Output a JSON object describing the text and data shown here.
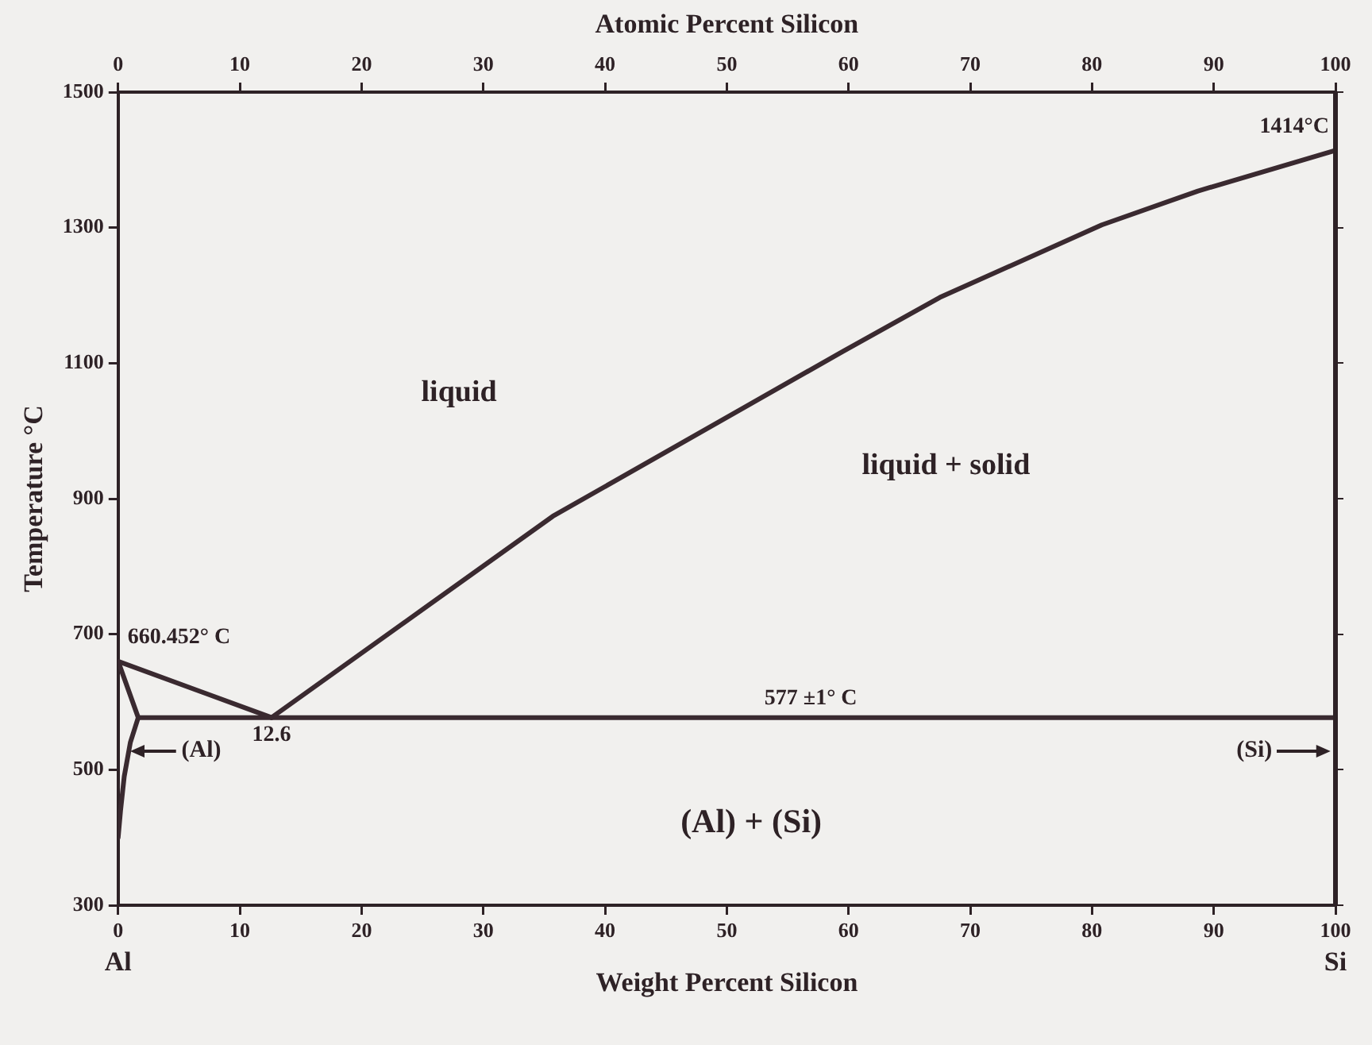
{
  "chart_data": {
    "type": "line",
    "xlabel": "Weight Percent Silicon",
    "x2label": "Atomic Percent Silicon",
    "ylabel": "Temperature °C",
    "xlim": [
      0,
      100
    ],
    "xticks": [
      0,
      10,
      20,
      30,
      40,
      50,
      60,
      70,
      80,
      90,
      100
    ],
    "x2lim": [
      0,
      100
    ],
    "x2ticks": [
      0,
      10,
      20,
      30,
      40,
      50,
      60,
      70,
      80,
      90,
      100
    ],
    "ylim": [
      300,
      1500
    ],
    "yticks": [
      300,
      500,
      700,
      900,
      1100,
      1300,
      1500
    ],
    "ref_lines": [
      {
        "axis": "x",
        "value": 100
      }
    ],
    "grid": false,
    "legend": false,
    "marker": "none",
    "line_style": "solid",
    "series": [
      {
        "color": "#3a2a30",
        "x": [
          0,
          12.6
        ],
        "values": [
          660,
          577
        ]
      },
      {
        "color": "#3a2a30",
        "x": [
          12.6,
          35.7,
          59.5,
          67.5,
          80.8,
          88.7,
          100
        ],
        "values": [
          577,
          874,
          1117,
          1197,
          1304,
          1354,
          1414
        ]
      },
      {
        "color": "#3a2a30",
        "x": [
          0,
          1.65
        ],
        "values": [
          660,
          577
        ]
      },
      {
        "color": "#3a2a30",
        "x": [
          1.65,
          1,
          0.5,
          0.2,
          0
        ],
        "values": [
          577,
          540,
          490,
          440,
          400
        ]
      },
      {
        "color": "#3a2a30",
        "x": [
          1.65,
          100
        ],
        "values": [
          577,
          577
        ]
      }
    ],
    "annotations": [
      {
        "text": "660.452° C",
        "x": 0,
        "y": 660
      },
      {
        "text": "1414°C",
        "x": 100,
        "y": 1414
      },
      {
        "text": "12.6",
        "x": 12.6,
        "y": 577
      },
      {
        "text": "577 ±1° C",
        "x": 56.9,
        "y": 577
      },
      "liquid",
      "liquid + solid",
      "(Al) + (Si)",
      "(Al)",
      "(Si)",
      {
        "text": "Al",
        "x": 0
      },
      {
        "text": "Si",
        "x": 100
      }
    ]
  }
}
